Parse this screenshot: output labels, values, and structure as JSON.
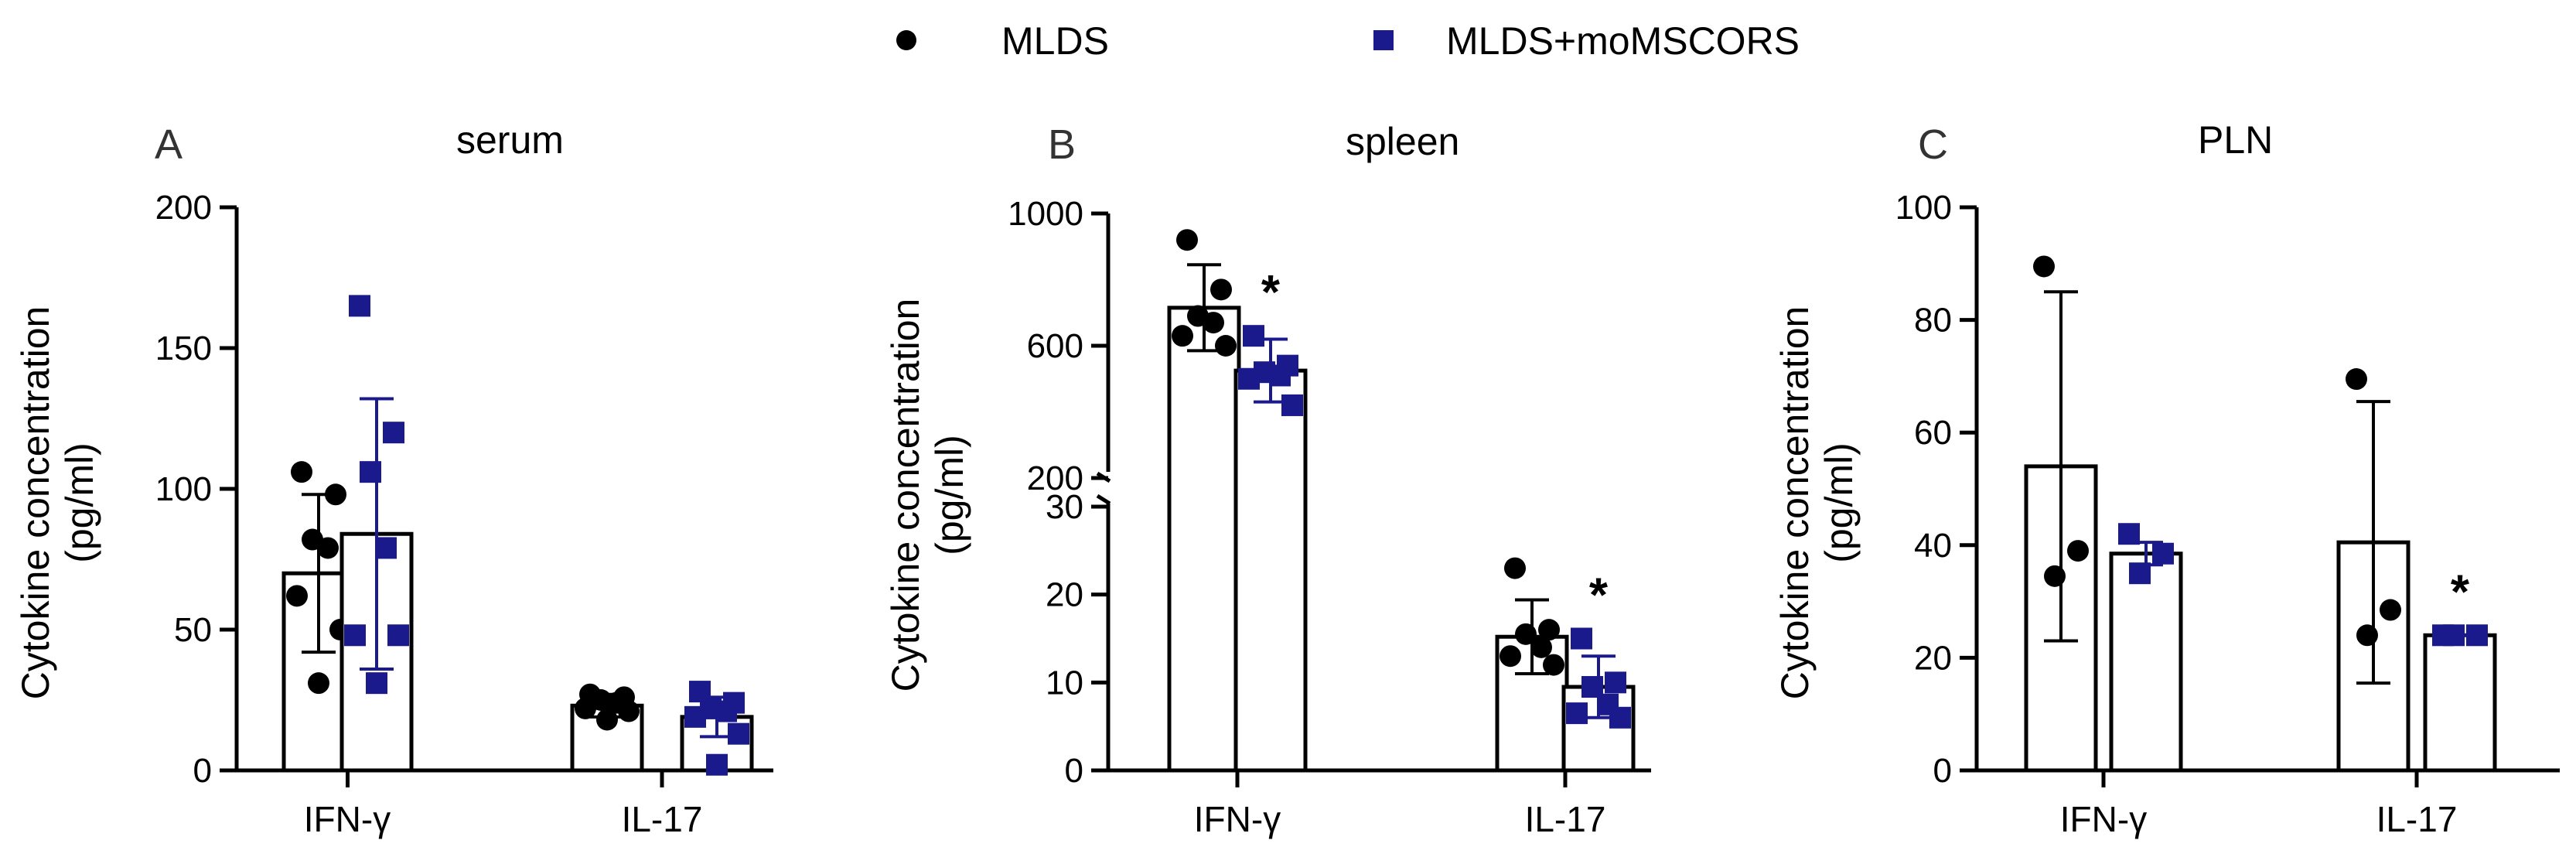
{
  "legend": {
    "items": [
      {
        "label": "MLDS",
        "marker": "circle",
        "color": "#000000"
      },
      {
        "label": "MLDS+moMSCORS",
        "marker": "square",
        "color": "#1a1a8c"
      }
    ]
  },
  "colors": {
    "group1": "#000000",
    "group2": "#1a1a8c",
    "bar_fill": "#ffffff"
  },
  "chart_data": [
    {
      "type": "bar",
      "panel": "A",
      "title": "serum",
      "ylabel": "Cytokine concentration\n(pg/ml)",
      "ylabel_lines": [
        "Cytokine concentration",
        "(pg/ml)"
      ],
      "ylim": [
        0,
        200
      ],
      "yticks": [
        0,
        50,
        100,
        150,
        200
      ],
      "categories": [
        "IFN-γ",
        "IL-17"
      ],
      "series": [
        {
          "name": "MLDS",
          "means": [
            70,
            23
          ],
          "sd": [
            28,
            4
          ],
          "points": [
            [
              106,
              98,
              82,
              79,
              62,
              50,
              31
            ],
            [
              27,
              26,
              25,
              24,
              22,
              21,
              18
            ]
          ]
        },
        {
          "name": "MLDS+moMSCORS",
          "means": [
            84,
            19
          ],
          "sd": [
            48,
            7
          ],
          "points": [
            [
              165,
              120,
              106,
              79,
              48,
              48,
              31
            ],
            [
              28,
              24,
              22,
              21,
              19,
              13,
              2
            ]
          ]
        }
      ],
      "significance": [
        null,
        null
      ]
    },
    {
      "type": "bar",
      "panel": "B",
      "title": "spleen",
      "ylabel": "Cytokine concentration\n(pg/ml)",
      "ylabel_lines": [
        "Cytokine concentration",
        "(pg/ml)"
      ],
      "axis_break": true,
      "upper_ylim": [
        200,
        1000
      ],
      "upper_yticks": [
        200,
        600,
        1000
      ],
      "lower_ylim": [
        0,
        30
      ],
      "lower_yticks": [
        0,
        10,
        20,
        30
      ],
      "categories": [
        "IFN-γ",
        "IL-17"
      ],
      "series": [
        {
          "name": "MLDS",
          "means": [
            715,
            15.2
          ],
          "sd": [
            130,
            4.2
          ],
          "points": [
            [
              920,
              770,
              690,
              670,
              630,
              600
            ],
            [
              23,
              16,
              15.5,
              14,
              13,
              12
            ]
          ]
        },
        {
          "name": "MLDS+moMSCORS",
          "means": [
            525,
            9.5
          ],
          "sd": [
            95,
            3.5
          ],
          "points": [
            [
              630,
              540,
              520,
              510,
              500,
              420
            ],
            [
              15,
              10,
              9.5,
              7.5,
              6.5,
              6
            ]
          ]
        }
      ],
      "significance": [
        {
          "series": "MLDS+moMSCORS",
          "category": "IFN-γ",
          "label": "*"
        },
        {
          "series": "MLDS+moMSCORS",
          "category": "IL-17",
          "label": "*"
        }
      ]
    },
    {
      "type": "bar",
      "panel": "C",
      "title": "PLN",
      "ylabel": "Cytokine concentration\n(pg/ml)",
      "ylabel_lines": [
        "Cytokine concentration",
        "(pg/ml)"
      ],
      "ylim": [
        0,
        100
      ],
      "yticks": [
        0,
        20,
        40,
        60,
        80,
        100
      ],
      "categories": [
        "IFN-γ",
        "IL-17"
      ],
      "series": [
        {
          "name": "MLDS",
          "means": [
            54,
            40.5
          ],
          "sd": [
            31,
            25
          ],
          "points": [
            [
              89.5,
              39,
              34.5
            ],
            [
              69.5,
              28.5,
              24
            ]
          ]
        },
        {
          "name": "MLDS+moMSCORS",
          "means": [
            38.5,
            24
          ],
          "sd": [
            2,
            0
          ],
          "points": [
            [
              42,
              38.5,
              35
            ],
            [
              24,
              24,
              24
            ]
          ]
        }
      ],
      "significance": [
        null,
        {
          "series": "MLDS+moMSCORS",
          "category": "IL-17",
          "label": "*"
        }
      ]
    }
  ]
}
